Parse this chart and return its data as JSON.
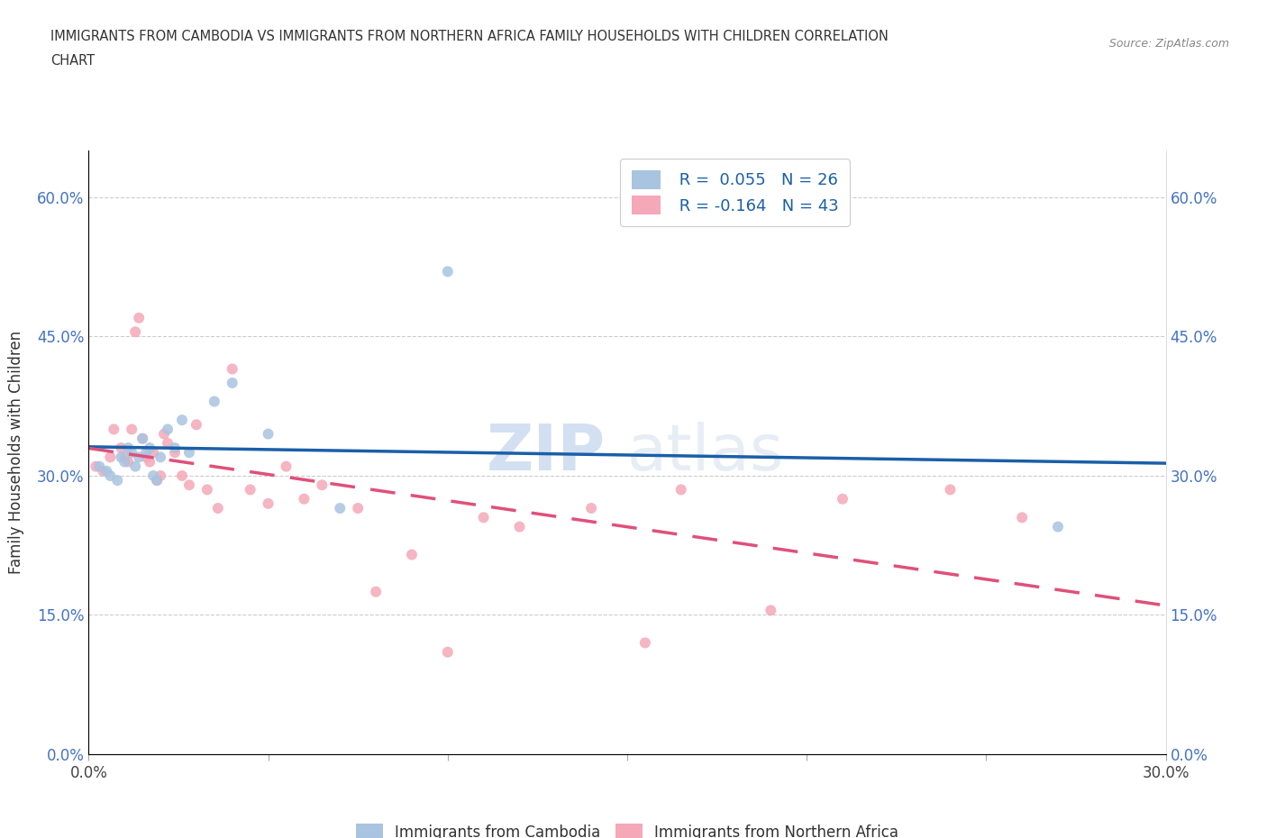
{
  "title_line1": "IMMIGRANTS FROM CAMBODIA VS IMMIGRANTS FROM NORTHERN AFRICA FAMILY HOUSEHOLDS WITH CHILDREN CORRELATION",
  "title_line2": "CHART",
  "source": "Source: ZipAtlas.com",
  "ylabel": "Family Households with Children",
  "xlim": [
    0.0,
    0.3
  ],
  "ylim": [
    0.0,
    0.65
  ],
  "xticks": [
    0.0,
    0.05,
    0.1,
    0.15,
    0.2,
    0.25,
    0.3
  ],
  "yticks": [
    0.0,
    0.15,
    0.3,
    0.45,
    0.6
  ],
  "color_cambodia": "#a8c4e0",
  "color_n_africa": "#f4a8b8",
  "line_color_cambodia": "#1a5fa8",
  "line_color_n_africa": "#e0507a",
  "scatter_alpha": 0.85,
  "marker_size": 75,
  "cambodia_x": [
    0.003,
    0.005,
    0.006,
    0.008,
    0.009,
    0.01,
    0.011,
    0.012,
    0.013,
    0.014,
    0.015,
    0.016,
    0.017,
    0.018,
    0.019,
    0.02,
    0.022,
    0.024,
    0.026,
    0.028,
    0.035,
    0.04,
    0.05,
    0.07,
    0.1,
    0.27
  ],
  "cambodia_y": [
    0.31,
    0.305,
    0.3,
    0.295,
    0.32,
    0.315,
    0.33,
    0.325,
    0.31,
    0.32,
    0.34,
    0.325,
    0.33,
    0.3,
    0.295,
    0.32,
    0.35,
    0.33,
    0.36,
    0.325,
    0.38,
    0.4,
    0.345,
    0.265,
    0.52,
    0.245
  ],
  "n_africa_x": [
    0.002,
    0.004,
    0.006,
    0.007,
    0.009,
    0.01,
    0.011,
    0.012,
    0.013,
    0.014,
    0.015,
    0.016,
    0.017,
    0.018,
    0.019,
    0.02,
    0.021,
    0.022,
    0.024,
    0.026,
    0.028,
    0.03,
    0.033,
    0.036,
    0.04,
    0.045,
    0.05,
    0.055,
    0.06,
    0.065,
    0.075,
    0.08,
    0.09,
    0.1,
    0.11,
    0.12,
    0.14,
    0.155,
    0.165,
    0.19,
    0.21,
    0.24,
    0.26
  ],
  "n_africa_y": [
    0.31,
    0.305,
    0.32,
    0.35,
    0.33,
    0.32,
    0.315,
    0.35,
    0.455,
    0.47,
    0.34,
    0.32,
    0.315,
    0.325,
    0.295,
    0.3,
    0.345,
    0.335,
    0.325,
    0.3,
    0.29,
    0.355,
    0.285,
    0.265,
    0.415,
    0.285,
    0.27,
    0.31,
    0.275,
    0.29,
    0.265,
    0.175,
    0.215,
    0.11,
    0.255,
    0.245,
    0.265,
    0.12,
    0.285,
    0.155,
    0.275,
    0.285,
    0.255
  ],
  "watermark_zip": "ZIP",
  "watermark_atlas": "atlas",
  "legend_r1": "R =  0.055",
  "legend_n1": "N = 26",
  "legend_r2": "R = -0.164",
  "legend_n2": "N = 43"
}
